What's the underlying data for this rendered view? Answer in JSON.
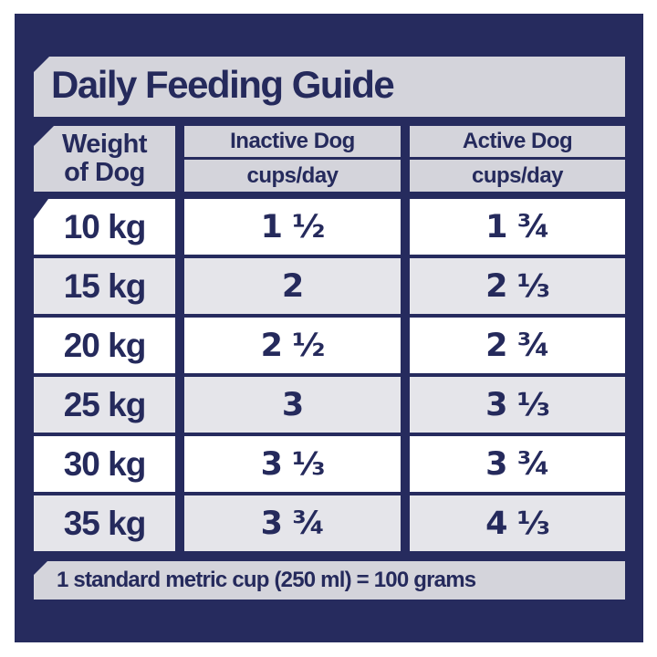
{
  "title": "Daily Feeding Guide",
  "colors": {
    "panel_navy": "#262b5e",
    "text_navy": "#252a5c",
    "band_gray": "#d4d4db",
    "row_alt_gray": "#e5e5ea",
    "row_white": "#ffffff",
    "page_background": "#ffffff"
  },
  "table": {
    "weight_header_line1": "Weight",
    "weight_header_line2": "of Dog",
    "columns": [
      {
        "label": "Inactive Dog",
        "unit": "cups/day"
      },
      {
        "label": "Active Dog",
        "unit": "cups/day"
      }
    ],
    "rows": [
      {
        "weight": "10 kg",
        "inactive": "1 ½",
        "active": "1 ¾"
      },
      {
        "weight": "15 kg",
        "inactive": "2",
        "active": "2 ⅓"
      },
      {
        "weight": "20 kg",
        "inactive": "2 ½",
        "active": "2 ¾"
      },
      {
        "weight": "25 kg",
        "inactive": "3",
        "active": "3 ⅓"
      },
      {
        "weight": "30 kg",
        "inactive": "3 ⅓",
        "active": "3 ¾"
      },
      {
        "weight": "35 kg",
        "inactive": "3 ¾",
        "active": "4 ⅓"
      }
    ]
  },
  "footer_note": "1 standard metric cup (250 ml) = 100 grams"
}
